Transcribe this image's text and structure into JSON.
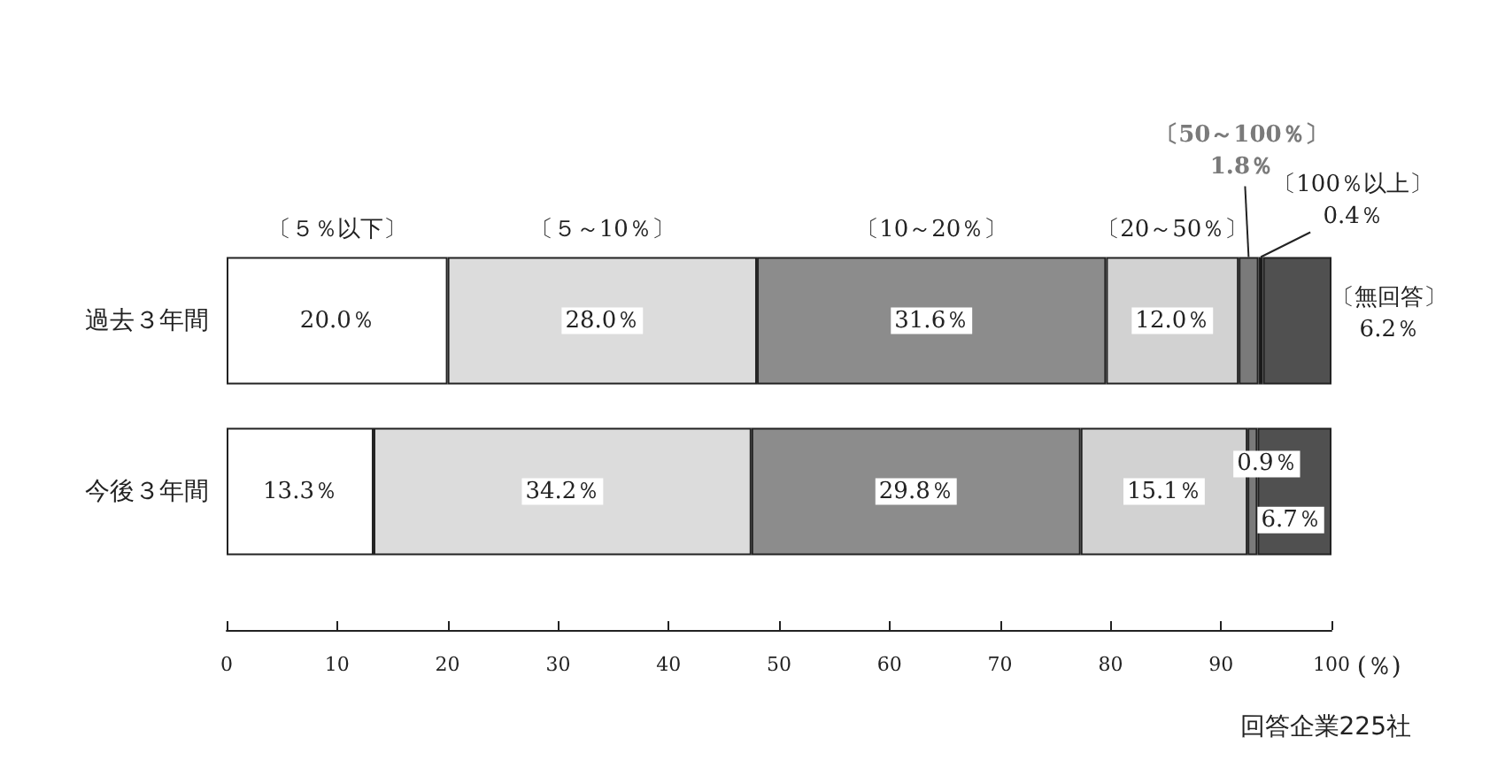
{
  "chart_data": {
    "type": "bar",
    "orientation": "horizontal",
    "stacked": true,
    "categories": [
      "過去３年間",
      "今後３年間"
    ],
    "series": [
      {
        "name": "〔５％以下〕",
        "color": "#ffffff",
        "values": [
          20.0,
          13.3
        ],
        "value_labels": [
          "20.0％",
          "13.3％"
        ]
      },
      {
        "name": "〔５～10％〕",
        "color": "#dcdcdc",
        "values": [
          28.0,
          34.2
        ],
        "value_labels": [
          "28.0％",
          "34.2％"
        ]
      },
      {
        "name": "〔10～20％〕",
        "color": "#8c8c8c",
        "values": [
          31.6,
          29.8
        ],
        "value_labels": [
          "31.6％",
          "29.8％"
        ]
      },
      {
        "name": "〔20～50％〕",
        "color": "#d2d2d2",
        "values": [
          12.0,
          15.1
        ],
        "value_labels": [
          "12.0％",
          "15.1％"
        ]
      },
      {
        "name": "〔50～100％〕",
        "color": "#7a7a7a",
        "values": [
          1.8,
          0.9
        ],
        "value_labels": [
          "1.8％",
          "0.9％"
        ]
      },
      {
        "name": "〔100％以上〕",
        "color": "#111111",
        "values": [
          0.4,
          null
        ],
        "value_labels": [
          "0.4％",
          null
        ]
      },
      {
        "name": "〔無回答〕",
        "color": "#505050",
        "values": [
          6.2,
          6.7
        ],
        "value_labels": [
          "6.2％",
          "6.7％"
        ]
      }
    ],
    "xlim": [
      0,
      100
    ],
    "xticks": [
      0,
      10,
      20,
      30,
      40,
      50,
      60,
      70,
      80,
      90,
      100
    ],
    "xlabel": "(％)",
    "grid": false,
    "legend": false,
    "annotations": [
      "回答企業225社"
    ]
  }
}
